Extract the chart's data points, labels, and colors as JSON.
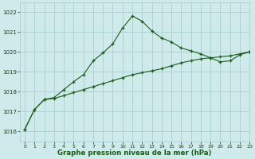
{
  "line1_x": [
    0,
    1,
    2,
    3,
    4,
    5,
    6,
    7,
    8,
    9,
    10,
    11,
    12,
    13,
    14,
    15,
    16,
    17,
    18,
    19,
    20,
    21,
    22,
    23
  ],
  "line1_y": [
    1016.1,
    1017.1,
    1017.6,
    1017.7,
    1018.1,
    1018.5,
    1018.85,
    1019.55,
    1019.95,
    1020.4,
    1021.2,
    1021.8,
    1021.55,
    1021.05,
    1020.7,
    1020.5,
    1020.2,
    1020.05,
    1019.9,
    1019.7,
    1019.5,
    1019.55,
    1019.85,
    1020.0
  ],
  "line2_x": [
    0,
    1,
    2,
    3,
    4,
    5,
    6,
    7,
    8,
    9,
    10,
    11,
    12,
    13,
    14,
    15,
    16,
    17,
    18,
    19,
    20,
    21,
    22,
    23
  ],
  "line2_y": [
    1016.1,
    1017.1,
    1017.6,
    1017.65,
    1017.8,
    1017.95,
    1018.1,
    1018.25,
    1018.4,
    1018.55,
    1018.7,
    1018.85,
    1018.95,
    1019.05,
    1019.15,
    1019.3,
    1019.45,
    1019.55,
    1019.65,
    1019.7,
    1019.75,
    1019.8,
    1019.9,
    1020.0
  ],
  "background_color": "#ceeaea",
  "grid_color": "#aacece",
  "line_color": "#1a5c1a",
  "xlabel": "Graphe pression niveau de la mer (hPa)",
  "ylim": [
    1015.5,
    1022.5
  ],
  "xlim": [
    -0.5,
    23
  ],
  "yticks": [
    1016,
    1017,
    1018,
    1019,
    1020,
    1021,
    1022
  ],
  "xticks": [
    0,
    1,
    2,
    3,
    4,
    5,
    6,
    7,
    8,
    9,
    10,
    11,
    12,
    13,
    14,
    15,
    16,
    17,
    18,
    19,
    20,
    21,
    22,
    23
  ],
  "marker": "+",
  "linewidth": 0.8,
  "marker_size": 3.5,
  "tick_fontsize": 5.0,
  "xlabel_fontsize": 6.2
}
